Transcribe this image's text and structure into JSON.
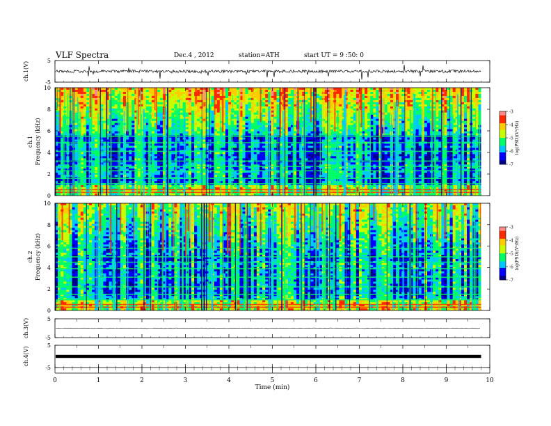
{
  "header": {
    "title": "VLF Spectra",
    "date": "Dec.4 , 2012",
    "station": "station=ATH",
    "start": "start UT =  9 :50: 0"
  },
  "colors": {
    "ink": "#000000",
    "colormap": [
      "#000088",
      "#0000ff",
      "#00c8ff",
      "#00ff66",
      "#c8ff00",
      "#ffcc00",
      "#ff2a00",
      "#ff8a8a"
    ]
  },
  "chart_data": [
    {
      "type": "line",
      "panel": "ch1-waveform",
      "ylabel": "ch.1(V)",
      "ylim": [
        -5,
        5
      ],
      "yticks": [
        "5",
        "-5"
      ],
      "note_values": "noisy waveform centred near 0 V, mostly within about -1 to 1 V with spikes",
      "center": 0
    },
    {
      "type": "heatmap",
      "panel": "ch1-spectrogram",
      "ylabel_line1": "ch.1",
      "ylabel_line2": "Frequency (kHz)",
      "ylim": [
        0,
        10
      ],
      "yticks": [
        "0",
        "2",
        "4",
        "6",
        "8",
        "10"
      ],
      "colorbar": {
        "label": "log(PSD)(V²/Hz)",
        "range": [
          -7,
          -3
        ],
        "ticks": [
          "-3",
          "-4",
          "-5",
          "-6",
          "-7"
        ]
      }
    },
    {
      "type": "heatmap",
      "panel": "ch2-spectrogram",
      "ylabel_line1": "ch.2",
      "ylabel_line2": "Frequency (kHz)",
      "ylim": [
        0,
        10
      ],
      "yticks": [
        "0",
        "2",
        "4",
        "6",
        "8",
        "10"
      ],
      "colorbar": {
        "label": "log(PSD)(V²/Hz)",
        "range": [
          -7,
          -3
        ],
        "ticks": [
          "-3",
          "-4",
          "-5",
          "-6",
          "-7"
        ]
      }
    },
    {
      "type": "line",
      "panel": "ch3-waveform",
      "ylabel": "ch.3(V)",
      "ylim": [
        -5,
        5
      ],
      "yticks": [
        "5",
        "-5"
      ],
      "center": 0
    },
    {
      "type": "line",
      "panel": "ch4-waveform",
      "ylabel": "ch.4(V)",
      "ylim": [
        -5,
        5
      ],
      "yticks": [
        "5",
        "-5"
      ],
      "center": 0
    }
  ],
  "xaxis": {
    "label": "Time (min)",
    "range": [
      0,
      10
    ],
    "ticks": [
      "0",
      "1",
      "2",
      "3",
      "4",
      "5",
      "6",
      "7",
      "8",
      "9",
      "10"
    ],
    "data_end": 9.8
  }
}
